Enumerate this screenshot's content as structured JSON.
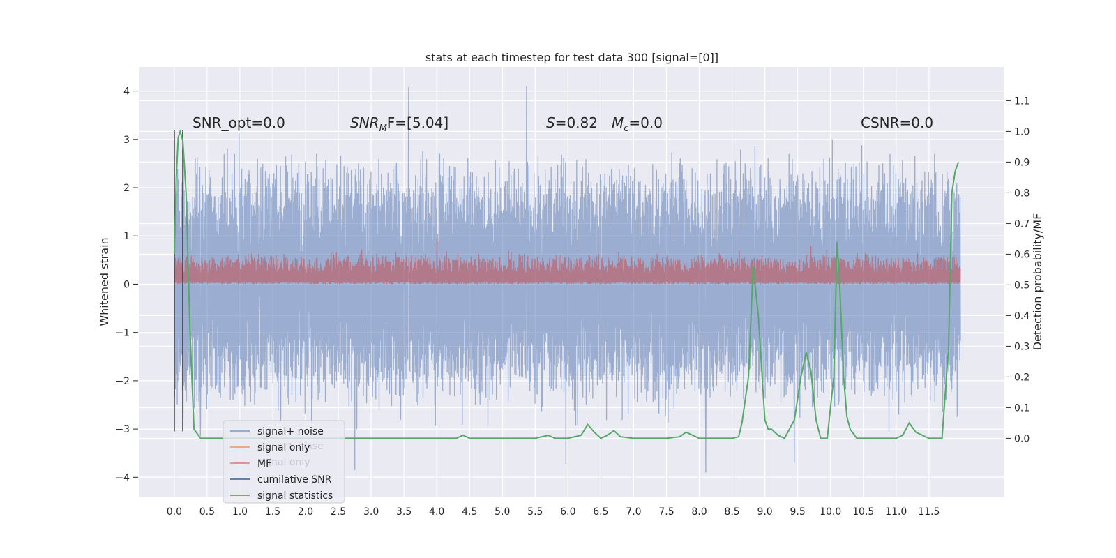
{
  "chart_data": {
    "type": "line",
    "title": "stats at each timestep for test data 300 [signal=[0]]",
    "xlabel": "",
    "ylabel": "Whitened strain",
    "y2label": "Detection probability/MF",
    "xlim": [
      -0.53,
      12.65
    ],
    "ylim": [
      -4.4,
      4.5
    ],
    "y2lim": [
      -0.19,
      1.21
    ],
    "grid": true,
    "xticks": [
      "0.0",
      "0.5",
      "1.0",
      "1.5",
      "2.0",
      "2.5",
      "3.0",
      "3.5",
      "4.0",
      "4.5",
      "5.0",
      "5.5",
      "6.0",
      "6.5",
      "7.0",
      "7.5",
      "8.0",
      "8.5",
      "9.0",
      "9.5",
      "10.0",
      "10.5",
      "11.0",
      "11.5"
    ],
    "yticks": [
      "−4",
      "−3",
      "−2",
      "−1",
      "0",
      "1",
      "2",
      "3",
      "4"
    ],
    "y2ticks": [
      "0.0",
      "0.1",
      "0.2",
      "0.3",
      "0.4",
      "0.5",
      "0.6",
      "0.7",
      "0.8",
      "0.9",
      "1.0",
      "1.1"
    ],
    "annotations": {
      "snr_opt": "SNR_opt=0.0",
      "snr_mf_main": "SNR",
      "snr_mf_sub": "M",
      "snr_mf_rest": "F=[5.04]",
      "s_main": "S",
      "s_rest": "=0.82",
      "mc_main": "M",
      "mc_sub": "c",
      "mc_rest": "=0.0",
      "csnr": "CSNR=0.0"
    },
    "legend": {
      "placement": "lower-left",
      "ghost_labels": [
        "signal+ noise",
        "signal only"
      ],
      "entries": [
        "signal+ noise",
        "signal only",
        "MF",
        "cumilative SNR",
        "signal statistics"
      ]
    },
    "colors": {
      "signal_noise": "#4c72b0",
      "signal_only": "#dd8452",
      "mf": "#c44e52",
      "cumulative_snr": "#4c72b0",
      "signal_statistics": "#55a868",
      "markers": "#333333",
      "background": "#eaeaf2"
    },
    "series": [
      {
        "name": "signal+ noise",
        "axis": "left",
        "x_range": [
          0.0,
          11.98
        ],
        "amplitude_typical": [
          -2.2,
          2.2
        ],
        "amplitude_extremes": [
          -3.9,
          4.1
        ],
        "peaks": [
          [
            3.57,
            4.08
          ],
          [
            5.37,
            4.1
          ],
          [
            2.75,
            -3.85
          ],
          [
            5.97,
            -3.72
          ],
          [
            8.1,
            -3.9
          ],
          [
            9.45,
            -3.7
          ],
          [
            0.4,
            -3.15
          ]
        ]
      },
      {
        "name": "MF",
        "axis": "left",
        "x_range": [
          0.0,
          11.98
        ],
        "band": [
          0.0,
          0.6
        ],
        "peaks": [
          [
            4.0,
            0.95
          ],
          [
            9.7,
            0.8
          ]
        ]
      },
      {
        "name": "signal statistics",
        "axis": "right",
        "x": [
          0.0,
          0.03,
          0.06,
          0.09,
          0.13,
          0.18,
          0.24,
          0.3,
          0.4,
          1.0,
          2.0,
          3.0,
          4.0,
          4.3,
          4.4,
          4.5,
          5.0,
          5.5,
          5.7,
          5.8,
          6.0,
          6.2,
          6.3,
          6.4,
          6.5,
          6.6,
          6.7,
          6.8,
          7.0,
          7.5,
          7.7,
          7.8,
          8.0,
          8.5,
          8.6,
          8.65,
          8.75,
          8.82,
          8.9,
          9.0,
          9.05,
          9.1,
          9.2,
          9.3,
          9.45,
          9.55,
          9.63,
          9.7,
          9.78,
          9.85,
          9.95,
          10.05,
          10.1,
          10.13,
          10.2,
          10.25,
          10.3,
          10.4,
          10.5,
          11.0,
          11.1,
          11.2,
          11.3,
          11.5,
          11.7,
          11.8,
          11.85,
          11.9,
          11.95
        ],
        "y": [
          0.6,
          0.85,
          0.98,
          1.0,
          0.97,
          0.8,
          0.35,
          0.03,
          0.0,
          0.0,
          0.0,
          0.0,
          0.0,
          0.0,
          0.01,
          0.0,
          0.0,
          0.0,
          0.01,
          0.0,
          0.0,
          0.01,
          0.045,
          0.02,
          0.0,
          0.01,
          0.025,
          0.005,
          0.0,
          0.0,
          0.005,
          0.02,
          0.0,
          0.0,
          0.005,
          0.05,
          0.2,
          0.56,
          0.4,
          0.06,
          0.03,
          0.03,
          0.01,
          0.0,
          0.06,
          0.2,
          0.28,
          0.22,
          0.06,
          0.0,
          0.0,
          0.2,
          0.64,
          0.55,
          0.2,
          0.07,
          0.03,
          0.0,
          0.0,
          0.0,
          0.01,
          0.05,
          0.02,
          0.0,
          0.0,
          0.3,
          0.8,
          0.87,
          0.9
        ]
      }
    ],
    "markers_x": [
      0.0,
      0.13
    ]
  }
}
